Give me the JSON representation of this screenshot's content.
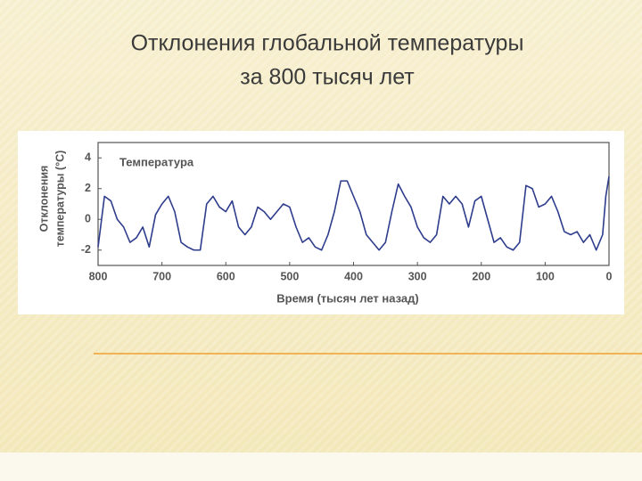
{
  "chart_data": {
    "type": "line",
    "title": [
      "Отклонения глобальной температуры",
      "за 800 тысяч лет"
    ],
    "ylabel": [
      "Отклонения",
      "температуры (°C)"
    ],
    "xlabel": "Время (тысяч лет назад)",
    "x": [
      800,
      790,
      780,
      770,
      760,
      750,
      740,
      730,
      720,
      710,
      700,
      690,
      680,
      670,
      660,
      650,
      640,
      630,
      620,
      610,
      600,
      590,
      580,
      570,
      560,
      550,
      540,
      530,
      520,
      510,
      500,
      490,
      480,
      470,
      460,
      450,
      440,
      430,
      420,
      410,
      400,
      390,
      380,
      370,
      360,
      350,
      340,
      330,
      320,
      310,
      300,
      290,
      280,
      270,
      260,
      250,
      240,
      230,
      220,
      210,
      200,
      190,
      180,
      170,
      160,
      150,
      140,
      130,
      120,
      110,
      100,
      90,
      80,
      70,
      60,
      50,
      40,
      30,
      20,
      10,
      5,
      0
    ],
    "series": [
      {
        "name": "Температура",
        "color": "#2e3c8c",
        "values": [
          -1.8,
          1.5,
          1.2,
          0,
          -0.5,
          -1.5,
          -1.2,
          -0.5,
          -1.8,
          0.3,
          1.0,
          1.5,
          0.5,
          -1.5,
          -1.8,
          -2.0,
          -2.0,
          1.0,
          1.5,
          0.8,
          0.5,
          1.2,
          -0.5,
          -1.0,
          -0.5,
          0.8,
          0.5,
          0.0,
          0.5,
          1.0,
          0.8,
          -0.5,
          -1.5,
          -1.2,
          -1.8,
          -2.0,
          -1.0,
          0.5,
          2.5,
          2.5,
          1.5,
          0.5,
          -1.0,
          -1.5,
          -2.0,
          -1.5,
          0.5,
          2.3,
          1.5,
          0.8,
          -0.5,
          -1.2,
          -1.5,
          -1.0,
          1.5,
          1.0,
          1.5,
          1.0,
          -0.5,
          1.2,
          1.5,
          0.0,
          -1.5,
          -1.2,
          -1.8,
          -2.0,
          -1.5,
          2.2,
          2.0,
          0.8,
          1.0,
          1.5,
          0.5,
          -0.8,
          -1.0,
          -0.8,
          -1.5,
          -1.0,
          -2.0,
          -1.0,
          1.5,
          2.8
        ]
      }
    ],
    "xlim": [
      800,
      0
    ],
    "ylim": [
      -3,
      5
    ],
    "xticks": [
      800,
      700,
      600,
      500,
      400,
      300,
      200,
      100,
      0
    ],
    "yticks": [
      -2,
      0,
      2,
      4
    ]
  }
}
